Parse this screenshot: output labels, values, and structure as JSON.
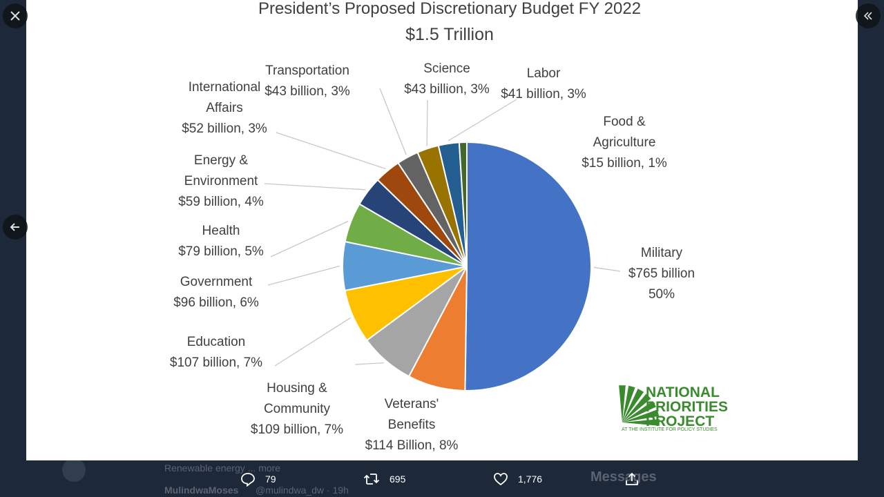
{
  "chart_data": {
    "type": "pie",
    "title": "President’s Proposed Discretionary Budget FY 2022",
    "subtitle": "$1.5 Trillion",
    "slices": [
      {
        "lines": [
          "Military",
          "$765 billion",
          "50%"
        ],
        "value": 765,
        "color": "#4472c4"
      },
      {
        "lines": [
          "Veterans'",
          "Benefits",
          "$114 Billion, 8%"
        ],
        "value": 114,
        "color": "#ed7d31"
      },
      {
        "lines": [
          "Housing &",
          "Community",
          "$109 billion, 7%"
        ],
        "value": 109,
        "color": "#a5a5a5"
      },
      {
        "lines": [
          "Education",
          "$107 billion, 7%"
        ],
        "value": 107,
        "color": "#ffc000"
      },
      {
        "lines": [
          "Government",
          "$96 billion, 6%"
        ],
        "value": 96,
        "color": "#5b9bd5"
      },
      {
        "lines": [
          "Health",
          "$79 billion, 5%"
        ],
        "value": 79,
        "color": "#70ad47"
      },
      {
        "lines": [
          "Energy &",
          "Environment",
          "$59 billion, 4%"
        ],
        "value": 59,
        "color": "#264478"
      },
      {
        "lines": [
          "International",
          "Affairs",
          "$52 billion, 3%"
        ],
        "value": 52,
        "color": "#9e480e"
      },
      {
        "lines": [
          "Transportation",
          "$43 billion, 3%"
        ],
        "value": 43,
        "color": "#636363"
      },
      {
        "lines": [
          "Science",
          "$43 billion, 3%"
        ],
        "value": 43,
        "color": "#997300"
      },
      {
        "lines": [
          "Labor",
          "$41 billion, 3%"
        ],
        "value": 41,
        "color": "#255e91"
      },
      {
        "lines": [
          "Food &",
          "Agriculture",
          "$15 billion, 1%"
        ],
        "value": 15,
        "color": "#43682b"
      }
    ]
  },
  "logo": {
    "line1": "NATIONAL",
    "line2": "PRIORITIES",
    "line3": "PROJECT",
    "tagline": "AT THE INSTITUTE FOR POLICY STUDIES",
    "color": "#3a8a2e"
  },
  "viewer": {
    "close_icon": "close-icon",
    "collapse_icon": "double-chevron-left-icon",
    "back_icon": "arrow-left-icon"
  },
  "actions": {
    "replies": "79",
    "retweets": "695",
    "likes": "1,776",
    "share_icon": "share-icon"
  },
  "background": {
    "timeline_text": "Renewable energy ... more",
    "author_text": "MulindwaMoses",
    "handle_text": "@mulindwa_dw · 19h",
    "messages_label": "Messages"
  }
}
